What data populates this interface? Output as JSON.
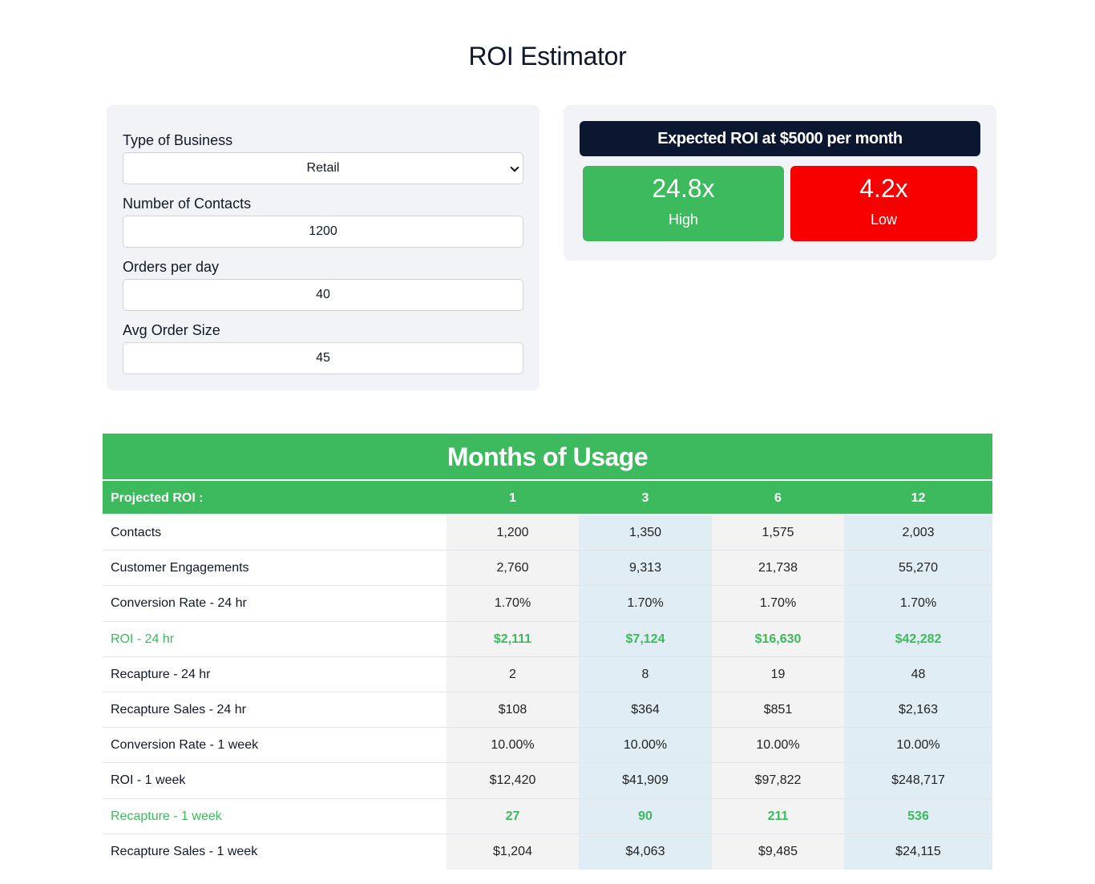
{
  "page": {
    "title": "ROI Estimator"
  },
  "form": {
    "business_type": {
      "label": "Type of Business",
      "value": "Retail"
    },
    "contacts": {
      "label": "Number of Contacts",
      "value": "1200"
    },
    "orders": {
      "label": "Orders per day",
      "value": "40"
    },
    "order_size": {
      "label": "Avg Order Size",
      "value": "45"
    }
  },
  "roi": {
    "header": "Expected ROI at $5000 per month",
    "high": {
      "value": "24.8x",
      "label": "High",
      "color": "#3dba5d"
    },
    "low": {
      "value": "4.2x",
      "label": "Low",
      "color": "#f80000"
    }
  },
  "usage": {
    "title": "Months of Usage",
    "header": [
      "Projected ROI :",
      "1",
      "3",
      "6",
      "12"
    ],
    "rows": [
      {
        "label": "Contacts",
        "cells": [
          "1,200",
          "1,350",
          "1,575",
          "2,003"
        ],
        "highlight": false
      },
      {
        "label": "Customer Engagements",
        "cells": [
          "2,760",
          "9,313",
          "21,738",
          "55,270"
        ],
        "highlight": false
      },
      {
        "label": "Conversion Rate - 24 hr",
        "cells": [
          "1.70%",
          "1.70%",
          "1.70%",
          "1.70%"
        ],
        "highlight": false
      },
      {
        "label": "ROI - 24 hr",
        "cells": [
          "$2,111",
          "$7,124",
          "$16,630",
          "$42,282"
        ],
        "highlight": true
      },
      {
        "label": "Recapture - 24 hr",
        "cells": [
          "2",
          "8",
          "19",
          "48"
        ],
        "highlight": false
      },
      {
        "label": "Recapture Sales - 24 hr",
        "cells": [
          "$108",
          "$364",
          "$851",
          "$2,163"
        ],
        "highlight": false
      },
      {
        "label": "Conversion Rate - 1 week",
        "cells": [
          "10.00%",
          "10.00%",
          "10.00%",
          "10.00%"
        ],
        "highlight": false
      },
      {
        "label": "ROI - 1 week",
        "cells": [
          "$12,420",
          "$41,909",
          "$97,822",
          "$248,717"
        ],
        "highlight": false
      },
      {
        "label": "Recapture - 1 week",
        "cells": [
          "27",
          "90",
          "211",
          "536"
        ],
        "highlight": true
      },
      {
        "label": "Recapture Sales - 1 week",
        "cells": [
          "$1,204",
          "$4,063",
          "$9,485",
          "$24,115"
        ],
        "highlight": false
      }
    ]
  },
  "colors": {
    "accent_green": "#3dba5d",
    "header_dark": "#0b1730",
    "low_red": "#f80000"
  }
}
